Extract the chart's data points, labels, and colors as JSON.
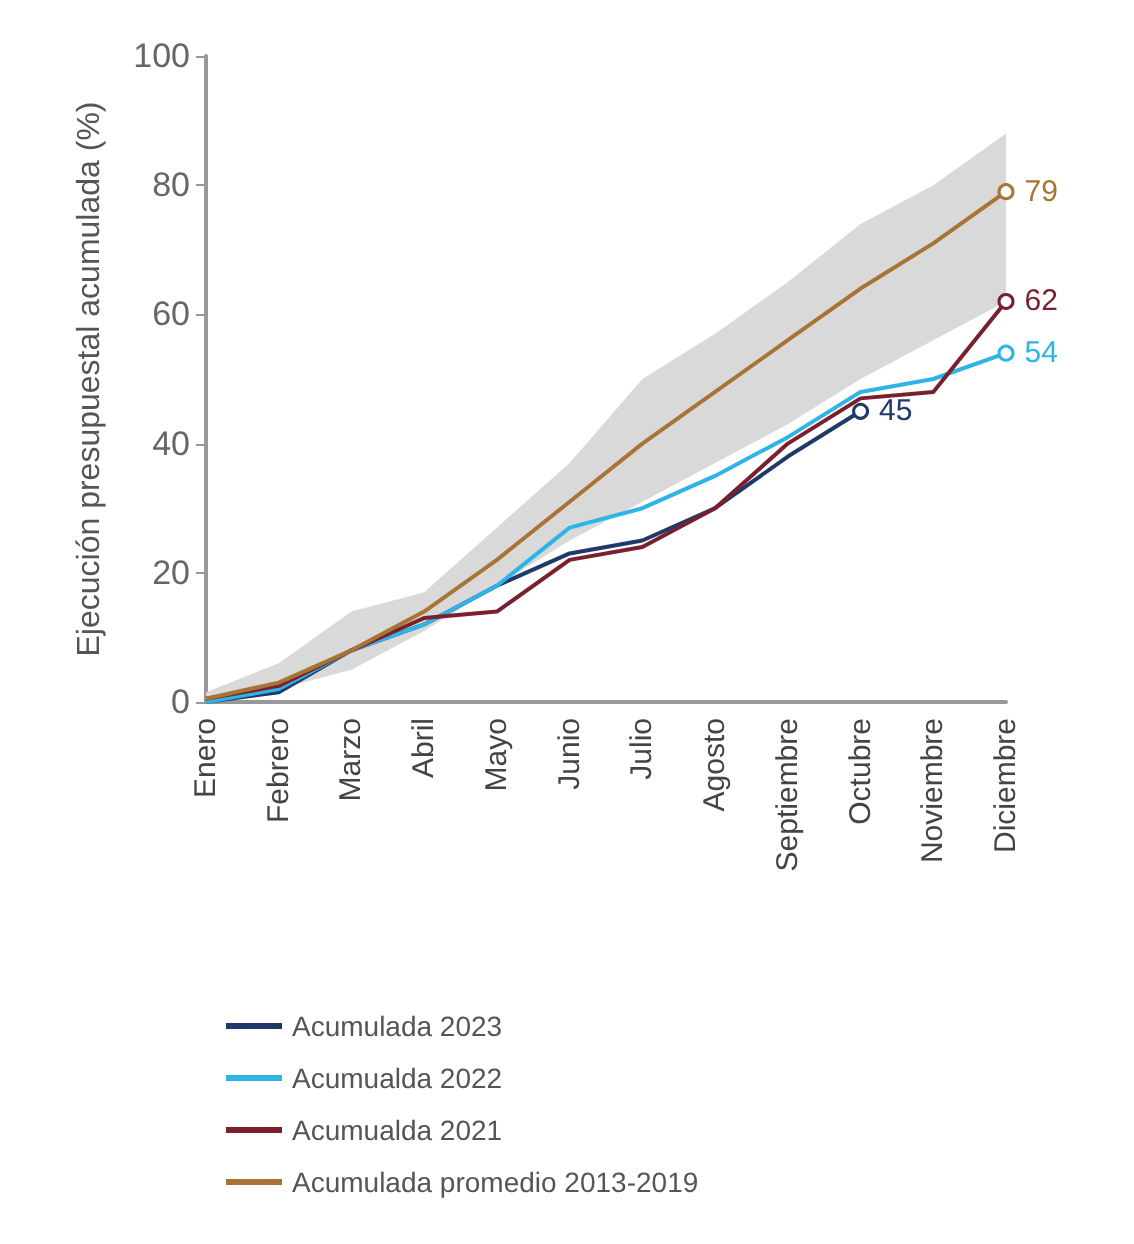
{
  "chart_data": {
    "type": "line",
    "ylabel": "Ejecución presupuestal acumulada (%)",
    "categories": [
      "Enero",
      "Febrero",
      "Marzo",
      "Abril",
      "Mayo",
      "Junio",
      "Julio",
      "Agosto",
      "Septiembre",
      "Octubre",
      "Noviembre",
      "Diciembre"
    ],
    "series": [
      {
        "name": "Acumulada 2023",
        "color": "#1f3a68",
        "values": [
          0,
          1.5,
          8,
          12,
          18,
          23,
          25,
          30,
          38,
          45,
          null,
          null
        ],
        "value_labels": [
          null,
          null,
          null,
          null,
          null,
          null,
          null,
          null,
          null,
          "45",
          null,
          null
        ]
      },
      {
        "name": "Acumualda 2022",
        "color": "#2eb4e6",
        "values": [
          0,
          2,
          8,
          12,
          18,
          27,
          30,
          35,
          41,
          48,
          50,
          54
        ],
        "value_labels": [
          null,
          null,
          null,
          null,
          null,
          null,
          null,
          null,
          null,
          null,
          null,
          "54"
        ]
      },
      {
        "name": "Acumualda 2021",
        "color": "#7a1f2e",
        "values": [
          0.5,
          2.5,
          8,
          13,
          14,
          22,
          24,
          30,
          40,
          47,
          48,
          62
        ],
        "value_labels": [
          null,
          null,
          null,
          null,
          null,
          null,
          null,
          null,
          null,
          null,
          null,
          "62"
        ]
      },
      {
        "name": "Acumulada promedio 2013-2019",
        "color": "#a87436",
        "values": [
          0.5,
          3,
          8,
          14,
          22,
          31,
          40,
          48,
          56,
          64,
          71,
          79
        ],
        "value_labels": [
          null,
          null,
          null,
          null,
          null,
          null,
          null,
          null,
          null,
          null,
          null,
          "79"
        ],
        "lower": [
          0,
          2,
          5,
          11,
          18,
          25,
          31,
          37,
          43,
          50,
          56,
          62
        ],
        "upper": [
          1.5,
          6,
          14,
          17,
          27,
          37,
          50,
          57,
          65,
          74,
          80,
          88
        ]
      }
    ],
    "ylim": [
      0,
      100
    ],
    "yticks": [
      0,
      20,
      40,
      60,
      80,
      100
    ],
    "grid": false,
    "legend": "bottom"
  }
}
